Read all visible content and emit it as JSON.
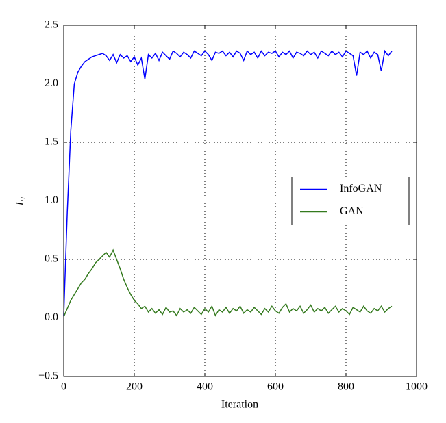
{
  "chart_data": {
    "type": "line",
    "xlabel": "Iteration",
    "ylabel": "L",
    "ylabel_subscript": "I",
    "x": [
      0,
      10,
      20,
      30,
      40,
      50,
      60,
      70,
      80,
      90,
      100,
      110,
      120,
      130,
      140,
      150,
      160,
      170,
      180,
      190,
      200,
      210,
      220,
      230,
      240,
      250,
      260,
      270,
      280,
      290,
      300,
      310,
      320,
      330,
      340,
      350,
      360,
      370,
      380,
      390,
      400,
      410,
      420,
      430,
      440,
      450,
      460,
      470,
      480,
      490,
      500,
      510,
      520,
      530,
      540,
      550,
      560,
      570,
      580,
      590,
      600,
      610,
      620,
      630,
      640,
      650,
      660,
      670,
      680,
      690,
      700,
      710,
      720,
      730,
      740,
      750,
      760,
      770,
      780,
      790,
      800,
      810,
      820,
      830,
      840,
      850,
      860,
      870,
      880,
      890,
      900,
      910,
      920,
      930
    ],
    "series": [
      {
        "name": "InfoGAN",
        "color": "#0000ff",
        "values": [
          0.02,
          0.9,
          1.6,
          2.0,
          2.1,
          2.15,
          2.19,
          2.21,
          2.23,
          2.24,
          2.25,
          2.26,
          2.24,
          2.2,
          2.25,
          2.18,
          2.25,
          2.22,
          2.24,
          2.19,
          2.23,
          2.16,
          2.22,
          2.04,
          2.25,
          2.22,
          2.26,
          2.2,
          2.27,
          2.24,
          2.21,
          2.28,
          2.26,
          2.23,
          2.27,
          2.25,
          2.22,
          2.28,
          2.26,
          2.24,
          2.28,
          2.25,
          2.2,
          2.27,
          2.26,
          2.28,
          2.24,
          2.27,
          2.23,
          2.28,
          2.26,
          2.2,
          2.28,
          2.25,
          2.27,
          2.22,
          2.28,
          2.24,
          2.27,
          2.26,
          2.28,
          2.23,
          2.27,
          2.25,
          2.28,
          2.22,
          2.27,
          2.26,
          2.24,
          2.28,
          2.25,
          2.27,
          2.22,
          2.28,
          2.26,
          2.24,
          2.28,
          2.25,
          2.27,
          2.23,
          2.28,
          2.26,
          2.24,
          2.07,
          2.27,
          2.25,
          2.28,
          2.22,
          2.27,
          2.25,
          2.11,
          2.28,
          2.24,
          2.28
        ]
      },
      {
        "name": "GAN",
        "color": "#347a1e",
        "values": [
          0.01,
          0.08,
          0.15,
          0.2,
          0.25,
          0.3,
          0.33,
          0.38,
          0.42,
          0.47,
          0.5,
          0.53,
          0.56,
          0.52,
          0.58,
          0.5,
          0.42,
          0.33,
          0.26,
          0.2,
          0.15,
          0.12,
          0.08,
          0.1,
          0.05,
          0.08,
          0.04,
          0.07,
          0.03,
          0.09,
          0.05,
          0.06,
          0.02,
          0.08,
          0.05,
          0.07,
          0.04,
          0.09,
          0.06,
          0.03,
          0.08,
          0.05,
          0.1,
          0.02,
          0.07,
          0.05,
          0.09,
          0.04,
          0.08,
          0.06,
          0.1,
          0.04,
          0.07,
          0.05,
          0.09,
          0.06,
          0.03,
          0.08,
          0.05,
          0.1,
          0.06,
          0.04,
          0.09,
          0.12,
          0.05,
          0.08,
          0.06,
          0.1,
          0.04,
          0.07,
          0.11,
          0.05,
          0.08,
          0.06,
          0.09,
          0.04,
          0.07,
          0.1,
          0.05,
          0.08,
          0.06,
          0.03,
          0.09,
          0.07,
          0.05,
          0.1,
          0.06,
          0.04,
          0.08,
          0.06,
          0.1,
          0.05,
          0.08,
          0.1
        ]
      }
    ],
    "xlim": [
      0,
      1000
    ],
    "xticks": [
      0,
      200,
      400,
      600,
      800,
      1000
    ],
    "ylim": [
      -0.5,
      2.5
    ],
    "yticks": [
      {
        "value": -0.5,
        "label": "−0.5"
      },
      {
        "value": 0,
        "label": "0.0"
      },
      0.5,
      {
        "value": 1,
        "label": "1.0"
      },
      1.5,
      {
        "value": 2,
        "label": "2.0"
      },
      2.5
    ],
    "grid": true,
    "legend": "center right"
  }
}
